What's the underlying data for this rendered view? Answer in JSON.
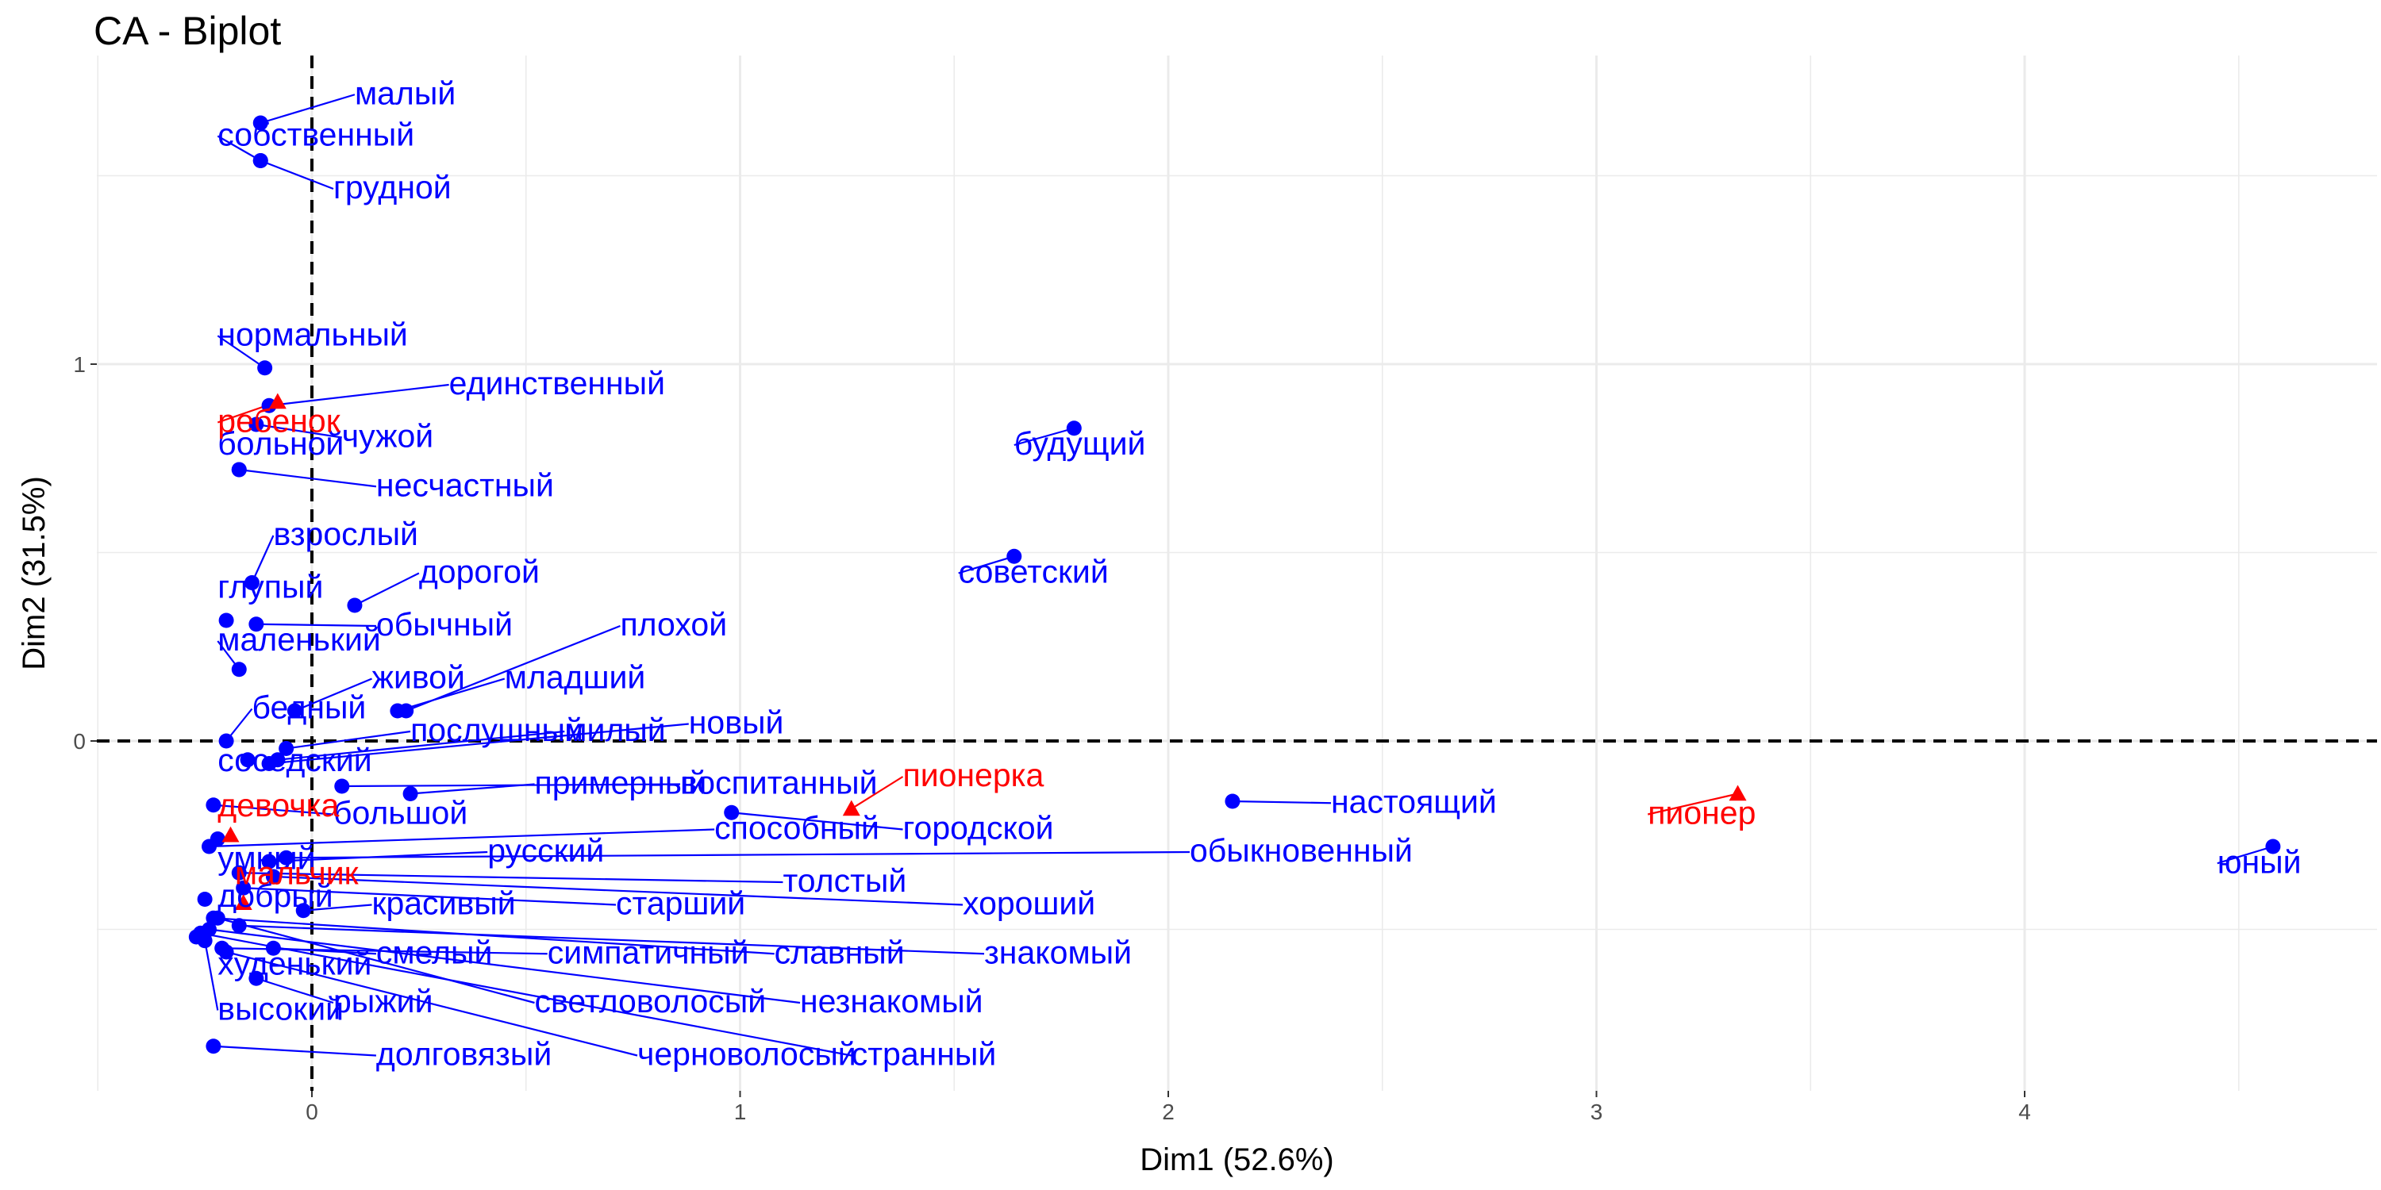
{
  "chart_data": {
    "type": "scatter",
    "title": "CA - Biplot",
    "xlabel": "Dim1 (52.6%)",
    "ylabel": "Dim2 (31.5%)",
    "xlim": [
      -0.5,
      4.85
    ],
    "ylim": [
      -0.94,
      1.82
    ],
    "xticks": [
      0,
      1,
      2,
      3,
      4
    ],
    "yticks": [
      0,
      1
    ],
    "grid": true,
    "colors": {
      "rows": "#0000ff",
      "columns": "#ff0000",
      "reference": "#000000"
    },
    "reference_lines": {
      "x": 0,
      "y": 0,
      "style": "dashed"
    },
    "series": [
      {
        "name": "rows",
        "marker": "circle",
        "points": [
          {
            "label": "малый",
            "x": -0.12,
            "y": 1.64,
            "lx": 0.1,
            "ly": 1.69
          },
          {
            "label": "собственный",
            "x": -0.12,
            "y": 1.54,
            "lx": -0.22,
            "ly": 1.58
          },
          {
            "label": "грудной",
            "x": -0.12,
            "y": 1.54,
            "lx": 0.05,
            "ly": 1.44
          },
          {
            "label": "нормальный",
            "x": -0.11,
            "y": 0.99,
            "lx": -0.22,
            "ly": 1.05
          },
          {
            "label": "единственный",
            "x": -0.1,
            "y": 0.89,
            "lx": 0.32,
            "ly": 0.92
          },
          {
            "label": "чужой",
            "x": -0.13,
            "y": 0.84,
            "lx": 0.07,
            "ly": 0.78
          },
          {
            "label": "больной",
            "x": -0.17,
            "y": 0.72,
            "lx": -0.22,
            "ly": 0.76
          },
          {
            "label": "несчастный",
            "x": -0.17,
            "y": 0.72,
            "lx": 0.15,
            "ly": 0.65
          },
          {
            "label": "взрослый",
            "x": -0.14,
            "y": 0.42,
            "lx": -0.09,
            "ly": 0.52
          },
          {
            "label": "глупый",
            "x": -0.2,
            "y": 0.32,
            "lx": -0.22,
            "ly": 0.38
          },
          {
            "label": "дорогой",
            "x": 0.1,
            "y": 0.36,
            "lx": 0.25,
            "ly": 0.42
          },
          {
            "label": "обычный",
            "x": -0.13,
            "y": 0.31,
            "lx": 0.15,
            "ly": 0.28
          },
          {
            "label": "маленький",
            "x": -0.17,
            "y": 0.19,
            "lx": -0.22,
            "ly": 0.24
          },
          {
            "label": "плохой",
            "x": 0.22,
            "y": 0.08,
            "lx": 0.72,
            "ly": 0.28
          },
          {
            "label": "живой",
            "x": -0.04,
            "y": 0.08,
            "lx": 0.14,
            "ly": 0.14
          },
          {
            "label": "младший",
            "x": 0.2,
            "y": 0.08,
            "lx": 0.45,
            "ly": 0.14
          },
          {
            "label": "бедный",
            "x": -0.2,
            "y": 0.0,
            "lx": -0.14,
            "ly": 0.06
          },
          {
            "label": "послушный",
            "x": -0.06,
            "y": -0.02,
            "lx": 0.23,
            "ly": 0.0
          },
          {
            "label": "милый",
            "x": -0.08,
            "y": -0.05,
            "lx": 0.59,
            "ly": 0.0
          },
          {
            "label": "новый",
            "x": -0.1,
            "y": -0.06,
            "lx": 0.88,
            "ly": 0.02
          },
          {
            "label": "соседский",
            "x": -0.15,
            "y": -0.05,
            "lx": -0.22,
            "ly": -0.08
          },
          {
            "label": "воспитанный",
            "x": 0.07,
            "y": -0.12,
            "lx": 0.86,
            "ly": -0.14
          },
          {
            "label": "примерный",
            "x": 0.23,
            "y": -0.14,
            "lx": 0.52,
            "ly": -0.14
          },
          {
            "label": "городской",
            "x": 0.98,
            "y": -0.19,
            "lx": 1.38,
            "ly": -0.26
          },
          {
            "label": "настоящий",
            "x": 2.15,
            "y": -0.16,
            "lx": 2.38,
            "ly": -0.19
          },
          {
            "label": "будущий",
            "x": 1.78,
            "y": 0.83,
            "lx": 1.64,
            "ly": 0.76
          },
          {
            "label": "советский",
            "x": 1.64,
            "y": 0.49,
            "lx": 1.51,
            "ly": 0.42
          },
          {
            "label": "юный",
            "x": 4.58,
            "y": -0.28,
            "lx": 4.45,
            "ly": -0.35
          },
          {
            "label": "большой",
            "x": -0.23,
            "y": -0.17,
            "lx": 0.05,
            "ly": -0.22
          },
          {
            "label": "способный",
            "x": -0.24,
            "y": -0.28,
            "lx": 0.94,
            "ly": -0.26
          },
          {
            "label": "обыкновенный",
            "x": -0.06,
            "y": -0.31,
            "lx": 2.05,
            "ly": -0.32
          },
          {
            "label": "умный",
            "x": -0.22,
            "y": -0.26,
            "lx": -0.22,
            "ly": -0.34
          },
          {
            "label": "русский",
            "x": -0.1,
            "y": -0.32,
            "lx": 0.41,
            "ly": -0.32
          },
          {
            "label": "толстый",
            "x": -0.17,
            "y": -0.35,
            "lx": 1.1,
            "ly": -0.4
          },
          {
            "label": "хороший",
            "x": -0.09,
            "y": -0.36,
            "lx": 1.52,
            "ly": -0.46
          },
          {
            "label": "старший",
            "x": -0.16,
            "y": -0.39,
            "lx": 0.71,
            "ly": -0.46
          },
          {
            "label": "красивый",
            "x": -0.02,
            "y": -0.45,
            "lx": 0.14,
            "ly": -0.46
          },
          {
            "label": "добрый",
            "x": -0.25,
            "y": -0.42,
            "lx": -0.22,
            "ly": -0.44
          },
          {
            "label": "смелый",
            "x": -0.09,
            "y": -0.55,
            "lx": 0.15,
            "ly": -0.59
          },
          {
            "label": "симпатичный",
            "x": -0.21,
            "y": -0.55,
            "lx": 0.55,
            "ly": -0.59
          },
          {
            "label": "славный",
            "x": -0.23,
            "y": -0.47,
            "lx": 1.08,
            "ly": -0.59
          },
          {
            "label": "знакомый",
            "x": -0.17,
            "y": -0.49,
            "lx": 1.57,
            "ly": -0.59
          },
          {
            "label": "худенький",
            "x": -0.27,
            "y": -0.52,
            "lx": -0.22,
            "ly": -0.62
          },
          {
            "label": "рыжий",
            "x": -0.13,
            "y": -0.63,
            "lx": 0.05,
            "ly": -0.72
          },
          {
            "label": "светловолосый",
            "x": -0.22,
            "y": -0.47,
            "lx": 0.52,
            "ly": -0.72
          },
          {
            "label": "незнакомый",
            "x": -0.24,
            "y": -0.5,
            "lx": 1.14,
            "ly": -0.72
          },
          {
            "label": "высокий",
            "x": -0.25,
            "y": -0.53,
            "lx": -0.22,
            "ly": -0.74
          },
          {
            "label": "долговязый",
            "x": -0.23,
            "y": -0.81,
            "lx": 0.15,
            "ly": -0.86
          },
          {
            "label": "черноволосый",
            "x": -0.2,
            "y": -0.56,
            "lx": 0.76,
            "ly": -0.86
          },
          {
            "label": "странный",
            "x": -0.26,
            "y": -0.51,
            "lx": 1.26,
            "ly": -0.86
          }
        ]
      },
      {
        "name": "columns",
        "marker": "triangle",
        "points": [
          {
            "label": "ребенок",
            "x": -0.08,
            "y": 0.9,
            "lx": -0.22,
            "ly": 0.82
          },
          {
            "label": "девочка",
            "x": -0.19,
            "y": -0.25,
            "lx": -0.22,
            "ly": -0.2
          },
          {
            "label": "мальчик",
            "x": -0.16,
            "y": -0.43,
            "lx": -0.18,
            "ly": -0.38
          },
          {
            "label": "пионерка",
            "x": 1.26,
            "y": -0.18,
            "lx": 1.38,
            "ly": -0.12
          },
          {
            "label": "пионер",
            "x": 3.33,
            "y": -0.14,
            "lx": 3.12,
            "ly": -0.22
          }
        ]
      }
    ]
  }
}
